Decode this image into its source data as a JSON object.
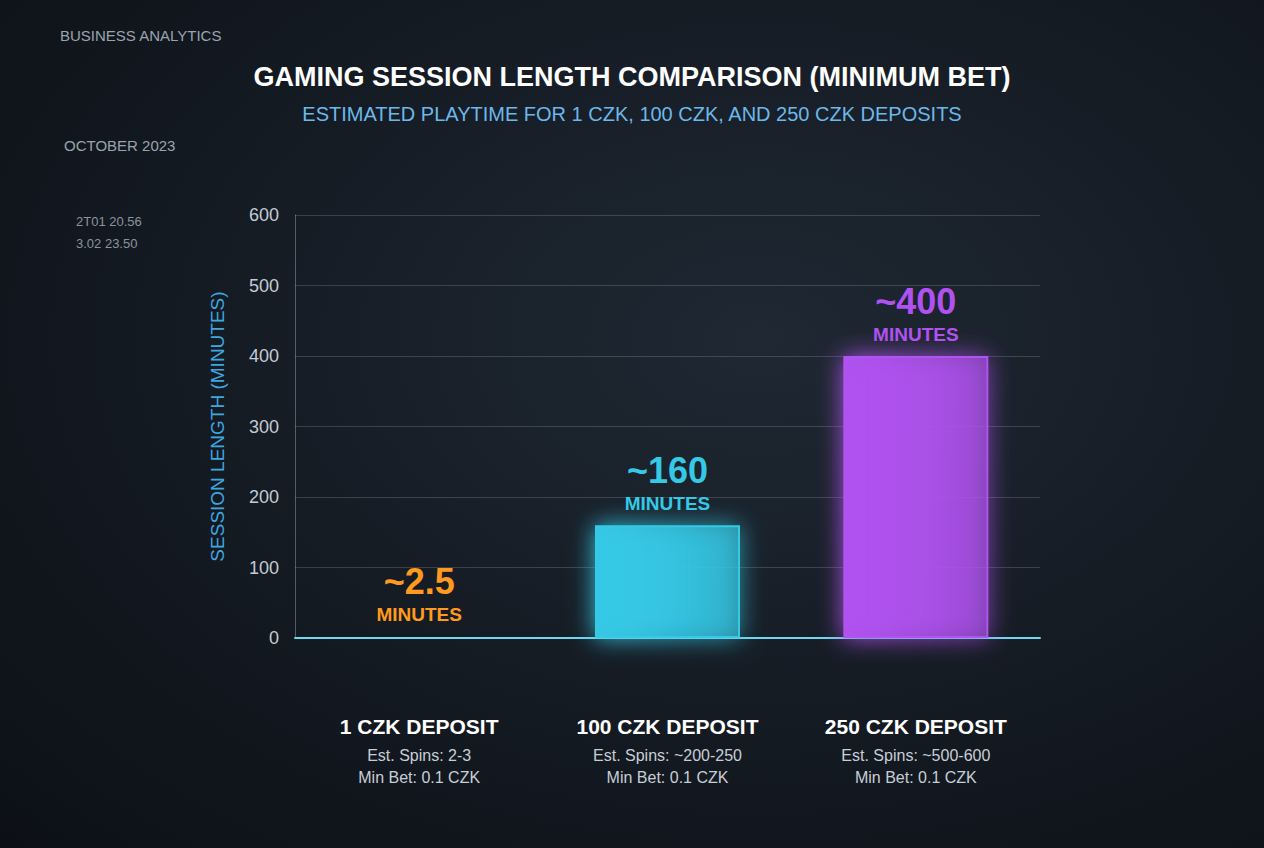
{
  "header": {
    "brand": "BUSINESS ANALYTICS",
    "date": "OCTOBER 2023",
    "sidebar_items": [
      "2T01 20.56",
      "3.02 23.50"
    ]
  },
  "chart_data": {
    "type": "bar",
    "title": "GAMING SESSION LENGTH COMPARISON (MINIMUM BET)",
    "subtitle": "ESTIMATED PLAYTIME FOR 1 CZK, 100 CZK, AND 250 CZK DEPOSITS",
    "y_label": "SESSION LENGTH (MINUTES)",
    "categories": [
      "1 CZK DEPOSIT",
      "100 CZK DEPOSIT",
      "250 CZK DEPOSIT"
    ],
    "category_notes": [
      [
        "Est. Spins: 2-3",
        "Min Bet: 0.1 CZK"
      ],
      [
        "Est. Spins: ~200-250",
        "Min Bet: 0.1 CZK"
      ],
      [
        "Est. Spins: ~500-600",
        "Min Bet: 0.1 CZK"
      ]
    ],
    "values": [
      2.5,
      160,
      400
    ],
    "value_labels": [
      "~2.5 MINUTES",
      "~160 MINUTES",
      "~400 MINUTES"
    ],
    "colors": [
      "#ff9a1f",
      "#35c9e6",
      "#b052f0"
    ],
    "ylim": [
      0,
      600
    ],
    "yticks": [
      0,
      100,
      200,
      300,
      400,
      500,
      600
    ],
    "grid": true,
    "data_labels": true
  }
}
